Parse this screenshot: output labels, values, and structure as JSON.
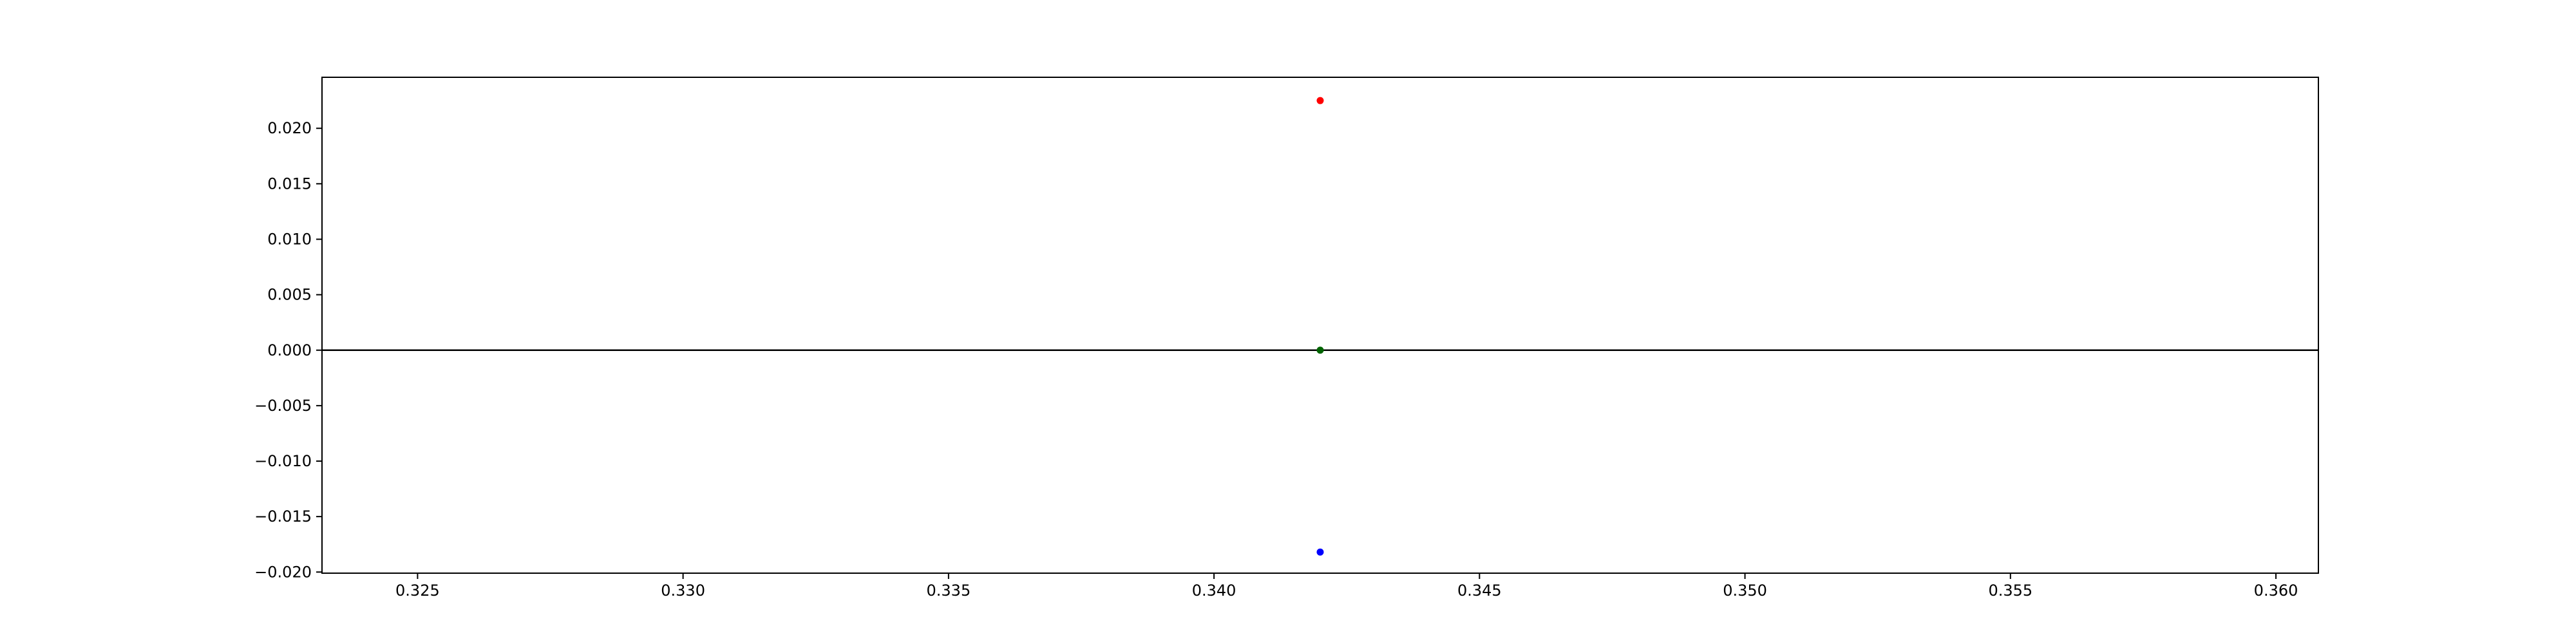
{
  "chart_data": {
    "type": "scatter",
    "title": "",
    "xlabel": "",
    "ylabel": "",
    "xlim": [
      0.3232,
      0.3608
    ],
    "ylim": [
      -0.0201,
      0.0246
    ],
    "x_ticks": [
      {
        "value": 0.325,
        "label": "0.325"
      },
      {
        "value": 0.33,
        "label": "0.330"
      },
      {
        "value": 0.335,
        "label": "0.335"
      },
      {
        "value": 0.34,
        "label": "0.340"
      },
      {
        "value": 0.345,
        "label": "0.345"
      },
      {
        "value": 0.35,
        "label": "0.350"
      },
      {
        "value": 0.355,
        "label": "0.355"
      },
      {
        "value": 0.36,
        "label": "0.360"
      }
    ],
    "y_ticks": [
      {
        "value": 0.02,
        "label": "0.020"
      },
      {
        "value": 0.015,
        "label": "0.015"
      },
      {
        "value": 0.01,
        "label": "0.010"
      },
      {
        "value": 0.005,
        "label": "0.005"
      },
      {
        "value": 0.0,
        "label": "0.000"
      },
      {
        "value": -0.005,
        "label": "−0.005"
      },
      {
        "value": -0.01,
        "label": "−0.010"
      },
      {
        "value": -0.015,
        "label": "−0.015"
      },
      {
        "value": -0.02,
        "label": "−0.020"
      }
    ],
    "hline": {
      "y": 0.0,
      "color": "#000000"
    },
    "grid": false,
    "legend": "none",
    "points": [
      {
        "x": 0.342,
        "y": 0.0225,
        "color": "#ff0000"
      },
      {
        "x": 0.342,
        "y": 0.0,
        "color": "#006400"
      },
      {
        "x": 0.342,
        "y": -0.0182,
        "color": "#0000ff"
      }
    ]
  }
}
